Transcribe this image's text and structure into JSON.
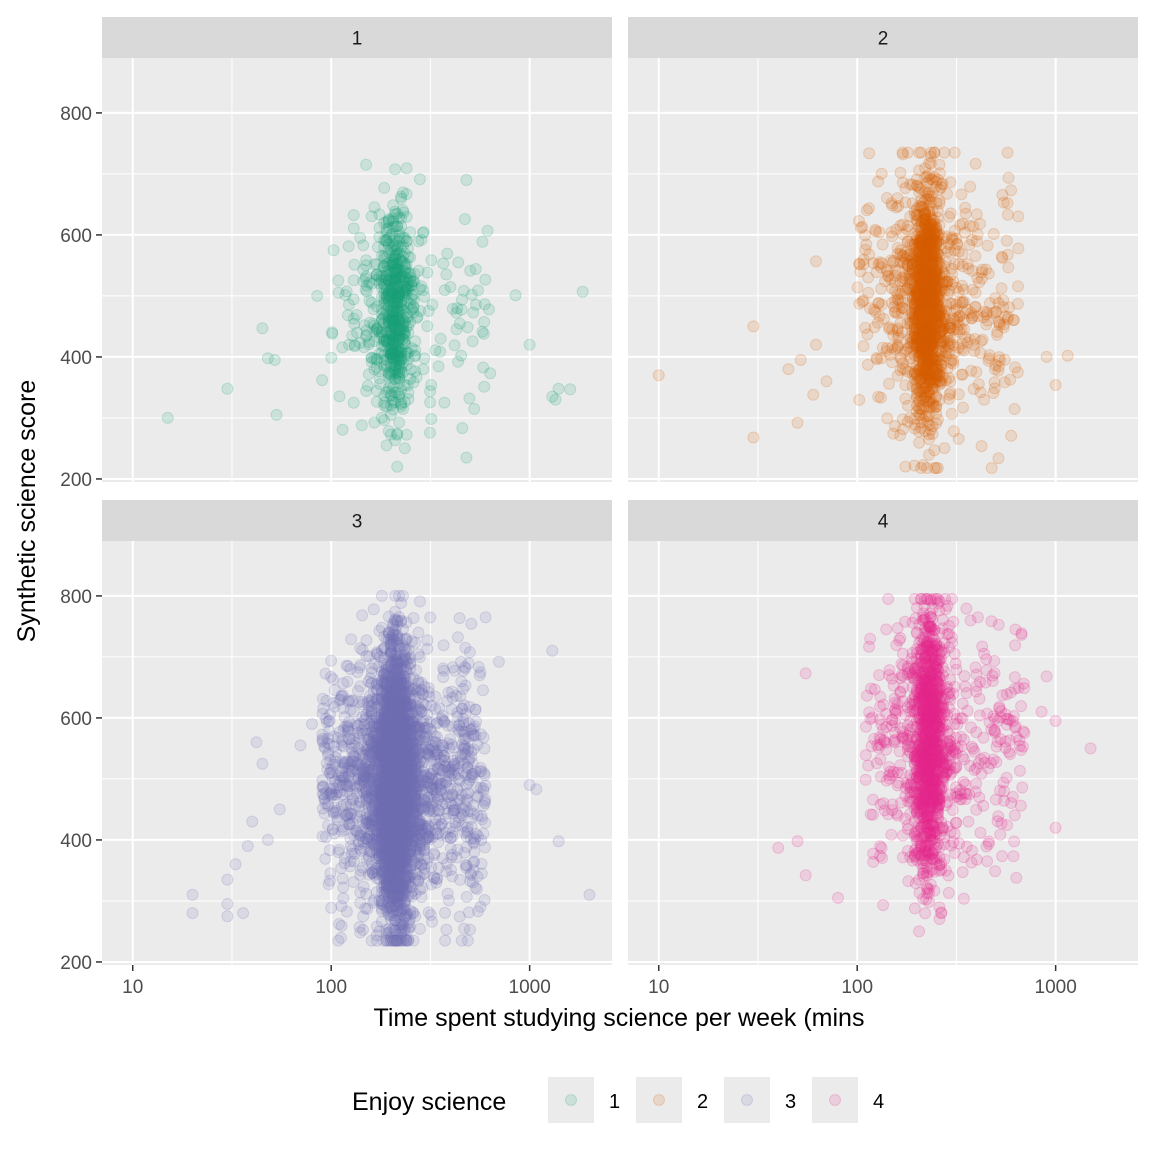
{
  "chart_data": {
    "type": "scatter",
    "facet_variable": "Enjoy science",
    "xlabel": "Time spent studying science per week (mins",
    "ylabel": "Synthetic science score",
    "x_scale": "log10",
    "xlim": [
      7,
      2600
    ],
    "ylim": [
      195,
      890
    ],
    "x_ticks": [
      10,
      100,
      1000
    ],
    "y_ticks": [
      200,
      400,
      600,
      800
    ],
    "grid": true,
    "legend": {
      "title": "Enjoy science",
      "position": "bottom",
      "entries": [
        "1",
        "2",
        "3",
        "4"
      ]
    },
    "point_alpha": 0.15,
    "series": [
      {
        "name": "1",
        "color": "#1b9e77",
        "n": 700,
        "x_peak": 210,
        "x_lo": 100,
        "x_hi": 650,
        "y_mean": 470,
        "y_sd": 85,
        "y_range": [
          220,
          715
        ],
        "outliers": [
          [
            15,
            300
          ],
          [
            30,
            348
          ],
          [
            45,
            447
          ],
          [
            48,
            398
          ],
          [
            52,
            395
          ],
          [
            53,
            305
          ],
          [
            85,
            500
          ],
          [
            90,
            362
          ],
          [
            850,
            501
          ],
          [
            1000,
            420
          ],
          [
            1300,
            335
          ],
          [
            1350,
            330
          ],
          [
            1400,
            348
          ],
          [
            1600,
            347
          ],
          [
            1850,
            507
          ],
          [
            480,
            690
          ],
          [
            480,
            235
          ]
        ]
      },
      {
        "name": "2",
        "color": "#d95f02",
        "n": 1600,
        "x_peak": 225,
        "x_lo": 100,
        "x_hi": 650,
        "y_mean": 490,
        "y_sd": 95,
        "y_range": [
          218,
          735
        ],
        "outliers": [
          [
            10,
            370
          ],
          [
            30,
            450
          ],
          [
            30,
            268
          ],
          [
            45,
            380
          ],
          [
            50,
            292
          ],
          [
            52,
            395
          ],
          [
            60,
            338
          ],
          [
            62,
            557
          ],
          [
            62,
            420
          ],
          [
            900,
            400
          ],
          [
            1000,
            354
          ],
          [
            1150,
            402
          ],
          [
            70,
            360
          ]
        ]
      },
      {
        "name": "3",
        "color": "#7570b3",
        "n": 5000,
        "x_peak": 210,
        "x_lo": 90,
        "x_hi": 600,
        "y_mean": 490,
        "y_sd": 100,
        "y_range": [
          235,
          800
        ],
        "outliers": [
          [
            20,
            310
          ],
          [
            20,
            280
          ],
          [
            30,
            335
          ],
          [
            30,
            295
          ],
          [
            30,
            275
          ],
          [
            33,
            360
          ],
          [
            36,
            280
          ],
          [
            38,
            390
          ],
          [
            40,
            430
          ],
          [
            42,
            560
          ],
          [
            45,
            525
          ],
          [
            48,
            400
          ],
          [
            55,
            450
          ],
          [
            70,
            555
          ],
          [
            80,
            590
          ],
          [
            1000,
            490
          ],
          [
            1080,
            483
          ],
          [
            1300,
            710
          ],
          [
            1400,
            398
          ],
          [
            2000,
            310
          ],
          [
            700,
            692
          ],
          [
            600,
            765
          ]
        ]
      },
      {
        "name": "4",
        "color": "#e7298a",
        "n": 1500,
        "x_peak": 230,
        "x_lo": 110,
        "x_hi": 700,
        "y_mean": 560,
        "y_sd": 105,
        "y_range": [
          250,
          795
        ],
        "outliers": [
          [
            40,
            387
          ],
          [
            50,
            398
          ],
          [
            55,
            342
          ],
          [
            55,
            673
          ],
          [
            80,
            305
          ],
          [
            1000,
            420
          ],
          [
            1000,
            595
          ],
          [
            1500,
            550
          ],
          [
            900,
            668
          ],
          [
            850,
            610
          ]
        ]
      }
    ]
  }
}
